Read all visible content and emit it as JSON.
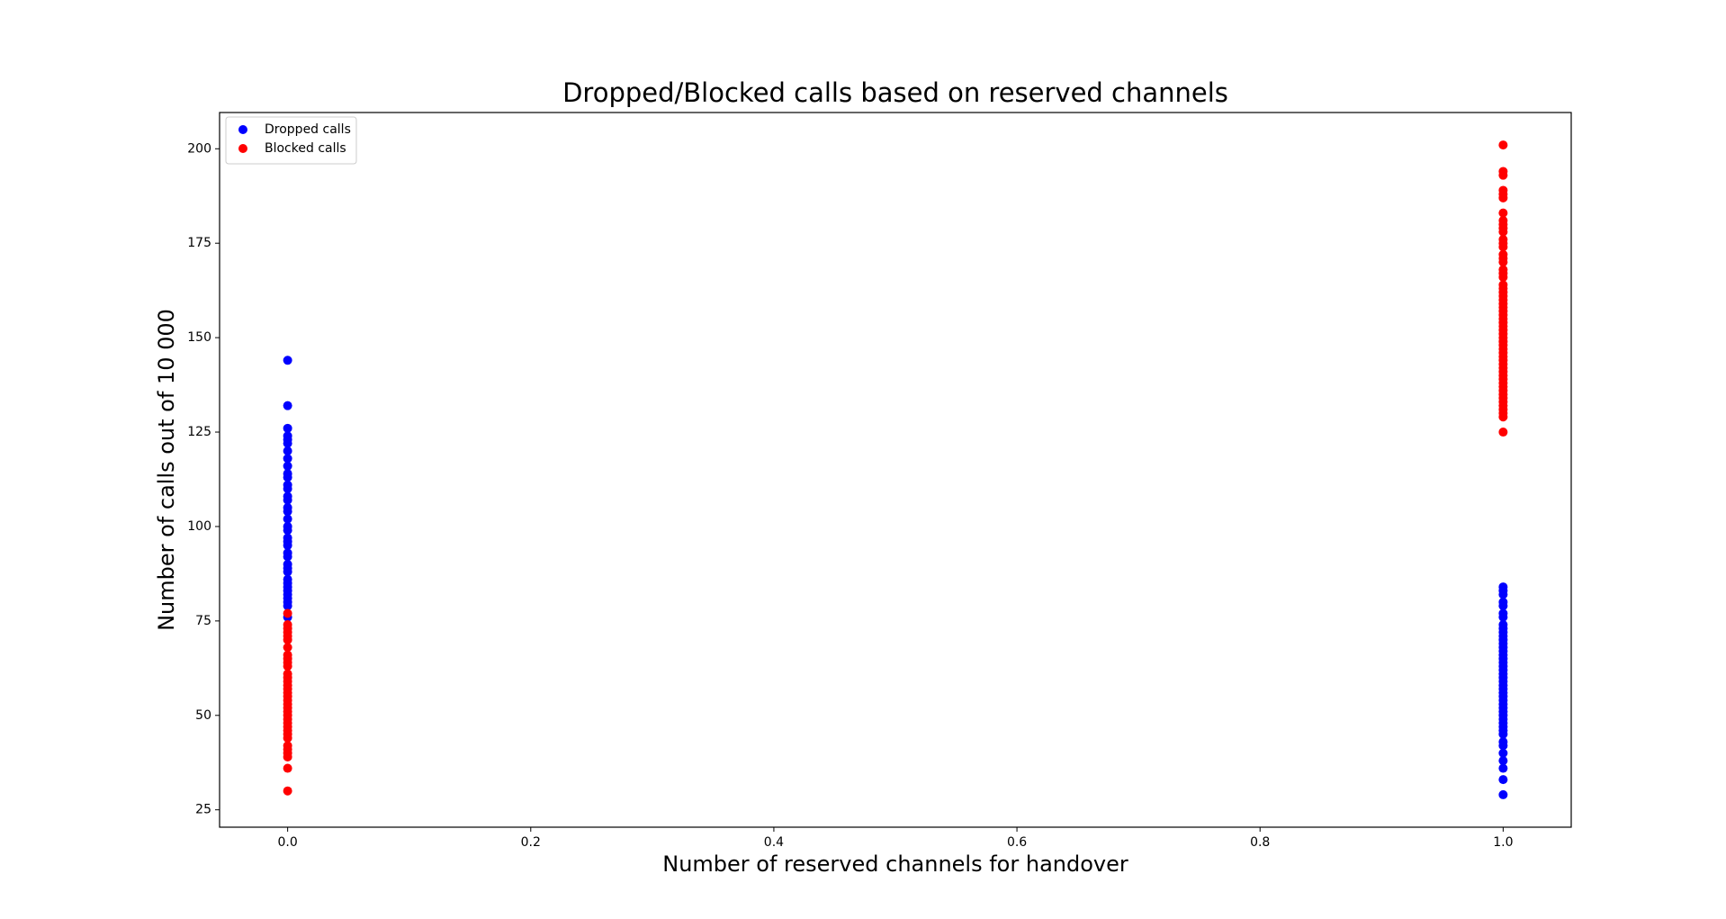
{
  "chart_data": {
    "type": "scatter",
    "title": "Dropped/Blocked calls based on reserved channels",
    "x_label": "Number of reserved channels for handover",
    "y_label": "Number of calls out of 10 000",
    "xlim": [
      -0.056,
      1.056
    ],
    "ylim": [
      20.4,
      209.6
    ],
    "xticks": [
      {
        "value": 0,
        "label": "0.0"
      },
      0.2,
      0.4,
      0.6,
      0.8,
      {
        "value": 1,
        "label": "1.0"
      }
    ],
    "yticks": [
      25,
      50,
      75,
      100,
      125,
      150,
      175,
      200
    ],
    "legend": "upper left",
    "series": [
      {
        "name": "Dropped calls",
        "color": "#0000ff",
        "x": [
          0,
          0,
          0,
          0,
          0,
          0,
          0,
          0,
          0,
          0,
          0,
          0,
          0,
          0,
          0,
          0,
          0,
          0,
          0,
          0,
          0,
          0,
          0,
          0,
          0,
          0,
          0,
          0,
          0,
          0,
          0,
          0,
          0,
          0,
          0,
          0,
          0,
          1,
          1,
          1,
          1,
          1,
          1,
          1,
          1,
          1,
          1,
          1,
          1,
          1,
          1,
          1,
          1,
          1,
          1,
          1,
          1,
          1,
          1,
          1,
          1,
          1,
          1,
          1,
          1,
          1,
          1,
          1,
          1,
          1,
          1,
          1,
          1,
          1,
          1,
          1,
          1,
          1,
          1,
          1,
          1
        ],
        "values": [
          144,
          132,
          126,
          124,
          123,
          122,
          120,
          118,
          116,
          114,
          113,
          111,
          110,
          108,
          107,
          105,
          104,
          102,
          100,
          99,
          97,
          96,
          95,
          93,
          92,
          90,
          89,
          88,
          86,
          85,
          84,
          83,
          82,
          81,
          80,
          79,
          76,
          84,
          83,
          82,
          80,
          79,
          77,
          76,
          74,
          73,
          72,
          71,
          70,
          69,
          68,
          67,
          66,
          65,
          64,
          63,
          62,
          61,
          60,
          59,
          58,
          57,
          56,
          55,
          54,
          53,
          52,
          51,
          50,
          49,
          48,
          47,
          46,
          45,
          43,
          42,
          40,
          38,
          36,
          33,
          29
        ]
      },
      {
        "name": "Blocked calls",
        "color": "#ff0000",
        "x": [
          0,
          0,
          0,
          0,
          0,
          0,
          0,
          0,
          0,
          0,
          0,
          0,
          0,
          0,
          0,
          0,
          0,
          0,
          0,
          0,
          0,
          0,
          0,
          0,
          0,
          0,
          0,
          0,
          0,
          0,
          0,
          0,
          0,
          0,
          0,
          1,
          1,
          1,
          1,
          1,
          1,
          1,
          1,
          1,
          1,
          1,
          1,
          1,
          1,
          1,
          1,
          1,
          1,
          1,
          1,
          1,
          1,
          1,
          1,
          1,
          1,
          1,
          1,
          1,
          1,
          1,
          1,
          1,
          1,
          1,
          1,
          1,
          1,
          1,
          1,
          1,
          1,
          1,
          1,
          1,
          1,
          1,
          1,
          1,
          1,
          1,
          1,
          1,
          1,
          1,
          1,
          1
        ],
        "values": [
          77,
          74,
          73,
          72,
          71,
          70,
          68,
          66,
          65,
          64,
          63,
          61,
          60,
          59,
          58,
          57,
          56,
          55,
          54,
          53,
          52,
          51,
          50,
          49,
          48,
          47,
          46,
          45,
          44,
          42,
          41,
          40,
          39,
          36,
          30,
          201,
          194,
          193,
          189,
          188,
          187,
          183,
          181,
          180,
          179,
          178,
          176,
          175,
          174,
          172,
          171,
          170,
          168,
          167,
          166,
          164,
          163,
          162,
          161,
          160,
          159,
          158,
          157,
          156,
          155,
          154,
          153,
          152,
          151,
          150,
          149,
          148,
          147,
          146,
          145,
          144,
          143,
          142,
          141,
          140,
          139,
          138,
          137,
          136,
          135,
          134,
          133,
          132,
          131,
          130,
          129,
          125
        ]
      }
    ]
  }
}
